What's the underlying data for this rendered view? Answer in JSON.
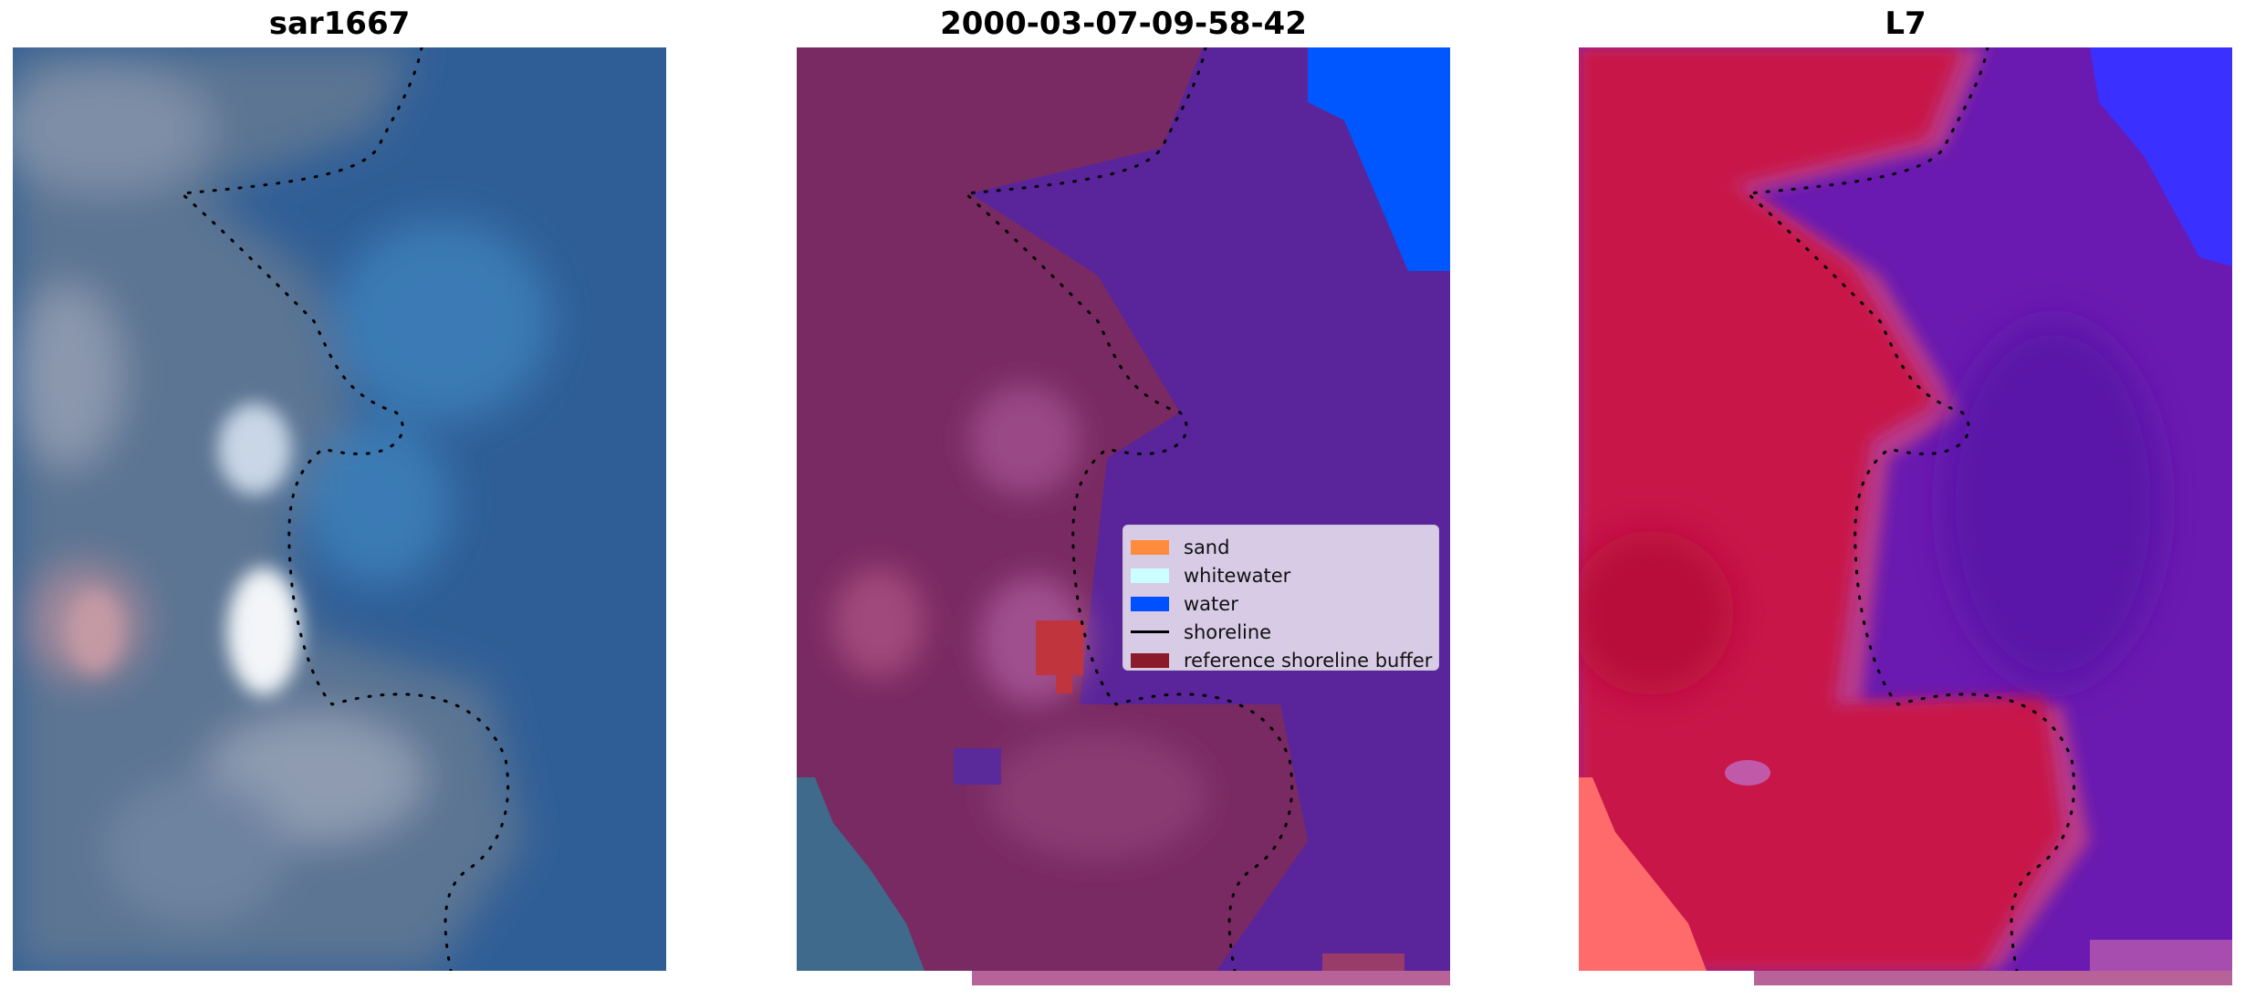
{
  "panels": [
    {
      "title": "sar1667"
    },
    {
      "title": "2000-03-07-09-58-42"
    },
    {
      "title": "L7"
    }
  ],
  "legend": {
    "items": [
      {
        "label": "sand",
        "color": "#ff8c3c",
        "kind": "patch"
      },
      {
        "label": "whitewater",
        "color": "#ccffff",
        "kind": "patch"
      },
      {
        "label": "water",
        "color": "#0050ff",
        "kind": "patch"
      },
      {
        "label": "shoreline",
        "color": "#000000",
        "kind": "line"
      },
      {
        "label": "reference shoreline buffer",
        "color": "#8b1a2a",
        "kind": "patch"
      }
    ]
  },
  "colors": {
    "rgb_water": "#2f5e96",
    "classified_land": "#7a2a62",
    "classified_water": "#5a259a",
    "classified_ocean": "#0057ff",
    "ndwi_land": "#c8184a",
    "ndwi_water": "#6a1ab0",
    "ndwi_blue": "#3a30ff",
    "bottom_strip": "#b7639a"
  }
}
